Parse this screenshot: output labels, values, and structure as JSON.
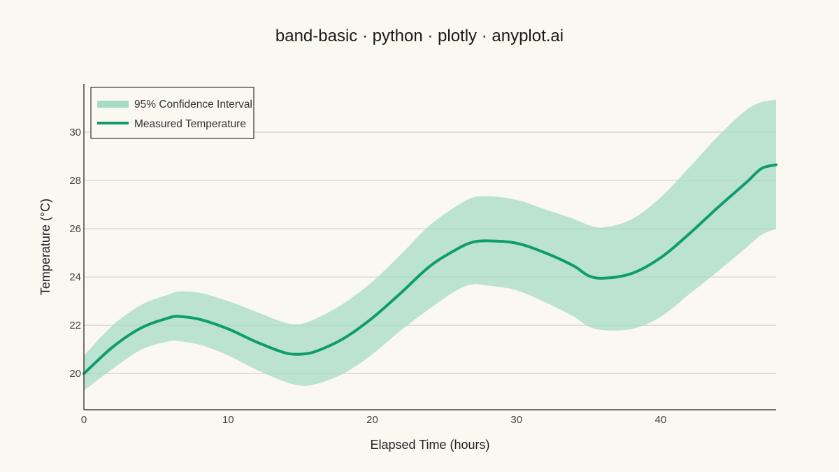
{
  "chart_data": {
    "type": "area",
    "title": "band-basic · python · plotly · anyplot.ai",
    "xlabel": "Elapsed Time (hours)",
    "ylabel": "Temperature (°C)",
    "xlim": [
      0,
      48
    ],
    "ylim": [
      18.5,
      32
    ],
    "x_ticks": [
      0,
      10,
      20,
      30,
      40
    ],
    "y_ticks": [
      20,
      22,
      24,
      26,
      28,
      30
    ],
    "grid": "horizontal",
    "legend_position": "top-left",
    "colors": {
      "line": "#0E9D6E",
      "band": "#A6DCC3",
      "background": "#FAF8F1",
      "grid": "#D4D2CB",
      "axis": "#444444"
    },
    "x": [
      0,
      2,
      4,
      6,
      6.5,
      8,
      10,
      12,
      14,
      15,
      16,
      18,
      20,
      22,
      24,
      26,
      27,
      28,
      30,
      32,
      34,
      35,
      36,
      38,
      40,
      42,
      44,
      46,
      47,
      48
    ],
    "series": [
      {
        "name": "Measured Temperature",
        "role": "line",
        "values": [
          20.0,
          21.1,
          21.9,
          22.33,
          22.37,
          22.25,
          21.85,
          21.3,
          20.85,
          20.8,
          20.9,
          21.45,
          22.3,
          23.35,
          24.45,
          25.2,
          25.45,
          25.5,
          25.4,
          25.0,
          24.45,
          24.05,
          23.95,
          24.15,
          24.8,
          25.8,
          26.9,
          27.95,
          28.5,
          28.65
        ]
      },
      {
        "name": "95% Confidence Interval",
        "role": "band",
        "lower": [
          19.3,
          20.2,
          21.0,
          21.35,
          21.35,
          21.2,
          20.75,
          20.15,
          19.65,
          19.5,
          19.55,
          20.0,
          20.8,
          21.8,
          22.7,
          23.5,
          23.7,
          23.65,
          23.45,
          22.95,
          22.35,
          21.95,
          21.8,
          21.85,
          22.35,
          23.3,
          24.25,
          25.25,
          25.75,
          26.0
        ],
        "upper": [
          20.75,
          22.0,
          22.85,
          23.3,
          23.4,
          23.35,
          23.0,
          22.55,
          22.1,
          22.05,
          22.25,
          22.9,
          23.8,
          24.95,
          26.15,
          27.0,
          27.3,
          27.35,
          27.2,
          26.8,
          26.4,
          26.15,
          26.05,
          26.4,
          27.3,
          28.55,
          29.85,
          30.95,
          31.25,
          31.35
        ]
      }
    ]
  }
}
